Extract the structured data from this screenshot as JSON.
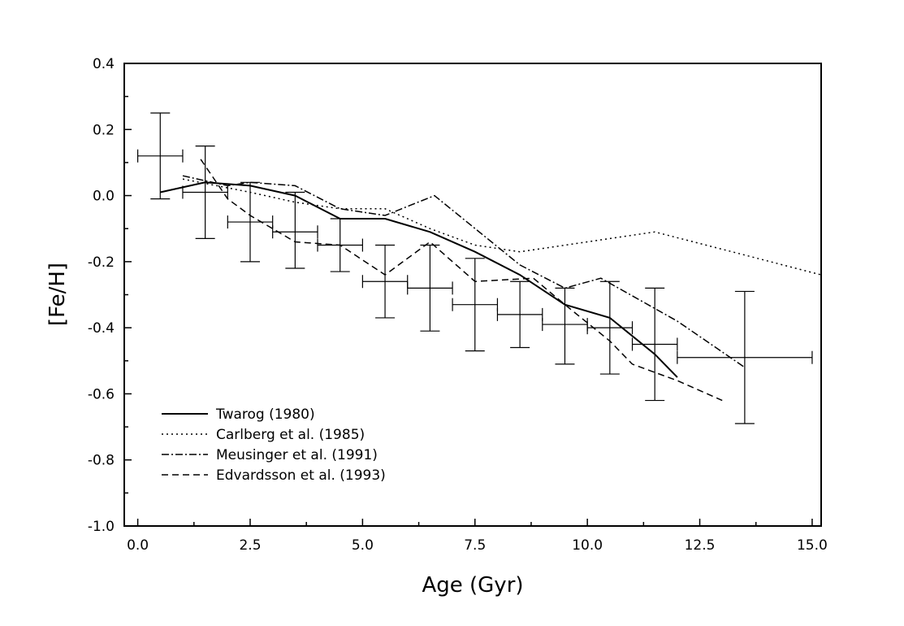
{
  "chart_data": {
    "type": "line",
    "xlabel": "Age (Gyr)",
    "ylabel": "[Fe/H]",
    "xlim": [
      -0.3,
      15.2
    ],
    "ylim": [
      -1.0,
      0.4
    ],
    "x_ticks": [
      0.0,
      2.5,
      5.0,
      7.5,
      10.0,
      12.5,
      15.0
    ],
    "x_tick_labels": [
      "0.0",
      "2.5",
      "5.0",
      "7.5",
      "10.0",
      "12.5",
      "15.0"
    ],
    "y_ticks": [
      0.4,
      0.2,
      0.0,
      -0.2,
      -0.4,
      -0.6,
      -0.8,
      -1.0
    ],
    "y_tick_labels": [
      "0.4",
      "0.2",
      "0.0",
      "-0.2",
      "-0.4",
      "-0.6",
      "-0.8",
      "-1.0"
    ],
    "legend_position": "bottom-left",
    "series": [
      {
        "name": "Twarog (1980)",
        "style": "solid",
        "x": [
          0.5,
          1.5,
          2.5,
          3.5,
          4.5,
          5.5,
          6.5,
          7.5,
          8.5,
          9.5,
          10.5,
          11.5,
          12.0
        ],
        "y": [
          0.01,
          0.04,
          0.03,
          0.0,
          -0.07,
          -0.07,
          -0.11,
          -0.17,
          -0.24,
          -0.33,
          -0.37,
          -0.48,
          -0.55
        ]
      },
      {
        "name": "Carlberg et al. (1985)",
        "style": "dotted",
        "x": [
          1.0,
          2.5,
          3.5,
          4.5,
          5.5,
          6.5,
          7.5,
          8.5,
          10.0,
          11.5,
          13.5,
          15.2
        ],
        "y": [
          0.05,
          0.01,
          -0.02,
          -0.04,
          -0.04,
          -0.1,
          -0.15,
          -0.17,
          -0.14,
          -0.11,
          -0.18,
          -0.24
        ]
      },
      {
        "name": "Meusinger et al. (1991)",
        "style": "dash-dot",
        "x": [
          1.0,
          2.0,
          2.5,
          3.5,
          4.5,
          5.5,
          6.6,
          8.5,
          9.5,
          10.3,
          12.0,
          13.5
        ],
        "y": [
          0.06,
          0.03,
          0.04,
          0.03,
          -0.04,
          -0.06,
          0.0,
          -0.21,
          -0.28,
          -0.25,
          -0.38,
          -0.52
        ]
      },
      {
        "name": "Edvardsson et al. (1993)",
        "style": "dashed",
        "x": [
          1.4,
          2.0,
          2.5,
          3.5,
          4.5,
          5.5,
          6.5,
          7.5,
          8.8,
          9.5,
          10.5,
          11.0,
          12.0,
          13.0
        ],
        "y": [
          0.11,
          -0.01,
          -0.06,
          -0.14,
          -0.15,
          -0.24,
          -0.14,
          -0.26,
          -0.25,
          -0.33,
          -0.44,
          -0.51,
          -0.56,
          -0.62
        ]
      }
    ],
    "error_points": [
      {
        "x": 0.5,
        "y": 0.12,
        "xerr": 0.5,
        "ylo": -0.01,
        "yhi": 0.25
      },
      {
        "x": 1.5,
        "y": 0.01,
        "xerr": 0.5,
        "ylo": -0.13,
        "yhi": 0.15
      },
      {
        "x": 2.5,
        "y": -0.08,
        "xerr": 0.5,
        "ylo": -0.2,
        "yhi": 0.04
      },
      {
        "x": 3.5,
        "y": -0.11,
        "xerr": 0.5,
        "ylo": -0.22,
        "yhi": 0.01
      },
      {
        "x": 4.5,
        "y": -0.15,
        "xerr": 0.5,
        "ylo": -0.23,
        "yhi": -0.07
      },
      {
        "x": 5.5,
        "y": -0.26,
        "xerr": 0.5,
        "ylo": -0.37,
        "yhi": -0.15
      },
      {
        "x": 6.5,
        "y": -0.28,
        "xerr": 0.5,
        "ylo": -0.41,
        "yhi": -0.15
      },
      {
        "x": 7.5,
        "y": -0.33,
        "xerr": 0.5,
        "ylo": -0.47,
        "yhi": -0.19
      },
      {
        "x": 8.5,
        "y": -0.36,
        "xerr": 0.5,
        "ylo": -0.46,
        "yhi": -0.26
      },
      {
        "x": 9.5,
        "y": -0.39,
        "xerr": 0.5,
        "ylo": -0.51,
        "yhi": -0.28
      },
      {
        "x": 10.5,
        "y": -0.4,
        "xerr": 0.5,
        "ylo": -0.54,
        "yhi": -0.26
      },
      {
        "x": 11.5,
        "y": -0.45,
        "xerr": 0.5,
        "ylo": -0.62,
        "yhi": -0.28
      },
      {
        "x": 13.5,
        "y": -0.49,
        "xerr": 1.5,
        "ylo": -0.69,
        "yhi": -0.29
      }
    ]
  }
}
